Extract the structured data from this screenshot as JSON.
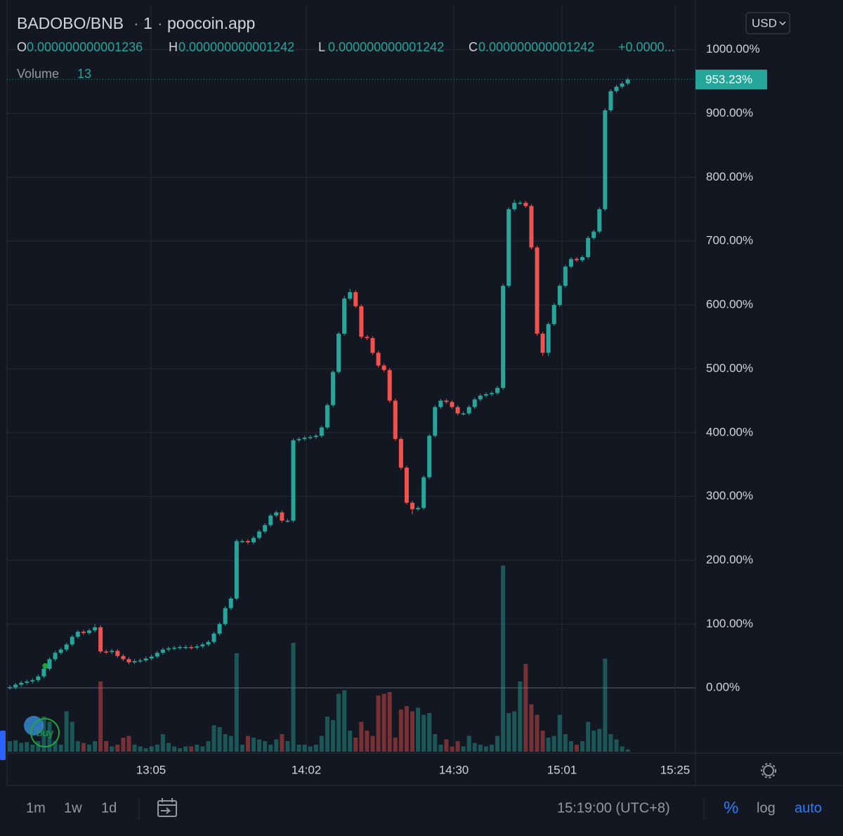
{
  "chart_data": {
    "type": "candlestick",
    "pair": "BADOBO/BNB",
    "interval": "1",
    "source": "poocoin.app",
    "ohlc_labels": [
      "O",
      "H",
      "L",
      "C"
    ],
    "ohlc_values": [
      "0.000000000001236",
      "0.000000000001242",
      "0.000000000001242",
      "0.000000000001242"
    ],
    "change": "+0.0000...",
    "currency": "USD",
    "volume_label": "Volume",
    "last_label": "953.23%",
    "up_color": "#26a69a",
    "down_color": "#ef5350",
    "open": [
      0,
      1,
      5,
      8,
      10,
      12,
      18,
      30,
      45,
      55,
      60,
      68,
      80,
      88,
      86,
      90,
      95,
      57,
      56,
      58,
      50,
      45,
      40,
      42,
      43,
      46,
      49,
      55,
      60,
      62,
      63,
      64,
      64,
      63,
      65,
      68,
      72,
      85,
      100,
      125,
      140,
      230,
      230,
      228,
      235,
      245,
      255,
      270,
      275,
      262,
      262,
      388,
      390,
      392,
      393,
      395,
      408,
      443,
      495,
      555,
      610,
      620,
      598,
      550,
      548,
      525,
      505,
      498,
      450,
      390,
      345,
      290,
      280,
      282,
      330,
      395,
      440,
      450,
      448,
      440,
      430,
      430,
      440,
      452,
      458,
      460,
      462,
      470,
      630,
      750,
      760,
      760,
      755,
      690,
      555,
      525,
      570,
      600,
      630,
      660,
      672,
      670,
      675,
      705,
      715,
      750,
      905,
      935,
      942,
      947
    ],
    "high": [
      4,
      8,
      11,
      13,
      15,
      21,
      33,
      48,
      58,
      63,
      71,
      83,
      91,
      91,
      93,
      100,
      98,
      60,
      61,
      61,
      53,
      48,
      45,
      46,
      49,
      52,
      58,
      63,
      65,
      66,
      67,
      67,
      67,
      68,
      71,
      75,
      88,
      103,
      128,
      143,
      233,
      233,
      233,
      238,
      248,
      258,
      273,
      278,
      278,
      265,
      391,
      393,
      395,
      396,
      398,
      411,
      446,
      498,
      558,
      614,
      625,
      623,
      601,
      553,
      551,
      528,
      508,
      501,
      453,
      393,
      348,
      293,
      285,
      333,
      398,
      443,
      453,
      453,
      451,
      443,
      433,
      443,
      455,
      461,
      463,
      465,
      473,
      633,
      753,
      765,
      763,
      763,
      758,
      693,
      558,
      573,
      603,
      633,
      663,
      675,
      675,
      678,
      708,
      718,
      753,
      908,
      938,
      945,
      950,
      956
    ],
    "low": [
      -3,
      -2,
      2,
      5,
      7,
      9,
      15,
      27,
      42,
      52,
      57,
      65,
      77,
      83,
      83,
      87,
      54,
      53,
      53,
      47,
      42,
      37,
      37,
      39,
      40,
      43,
      46,
      52,
      57,
      59,
      60,
      61,
      60,
      60,
      62,
      65,
      69,
      82,
      97,
      122,
      137,
      227,
      225,
      225,
      232,
      242,
      252,
      267,
      259,
      259,
      259,
      385,
      387,
      389,
      390,
      392,
      405,
      440,
      492,
      552,
      607,
      595,
      547,
      545,
      522,
      502,
      495,
      447,
      387,
      342,
      287,
      272,
      277,
      279,
      327,
      392,
      437,
      445,
      437,
      427,
      427,
      427,
      437,
      449,
      455,
      457,
      459,
      467,
      627,
      747,
      757,
      752,
      687,
      552,
      520,
      520,
      567,
      597,
      627,
      657,
      667,
      667,
      672,
      702,
      712,
      747,
      902,
      932,
      939,
      944
    ],
    "close": [
      1,
      5,
      8,
      10,
      12,
      18,
      30,
      45,
      55,
      60,
      68,
      80,
      88,
      86,
      90,
      95,
      57,
      56,
      58,
      50,
      45,
      40,
      42,
      43,
      46,
      49,
      55,
      60,
      62,
      63,
      64,
      64,
      63,
      65,
      68,
      72,
      85,
      100,
      125,
      140,
      230,
      230,
      228,
      235,
      245,
      255,
      270,
      275,
      262,
      262,
      388,
      390,
      392,
      393,
      395,
      408,
      443,
      495,
      555,
      610,
      620,
      598,
      550,
      548,
      525,
      505,
      498,
      450,
      390,
      345,
      290,
      280,
      282,
      330,
      395,
      440,
      450,
      448,
      440,
      430,
      430,
      440,
      452,
      458,
      460,
      462,
      470,
      630,
      750,
      760,
      760,
      755,
      690,
      555,
      525,
      570,
      600,
      630,
      660,
      672,
      670,
      675,
      705,
      715,
      750,
      905,
      935,
      942,
      947,
      953.23
    ],
    "volume": [
      60,
      65,
      50,
      55,
      40,
      60,
      200,
      170,
      60,
      40,
      230,
      170,
      60,
      50,
      40,
      60,
      400,
      60,
      30,
      40,
      80,
      90,
      40,
      30,
      20,
      30,
      40,
      100,
      50,
      30,
      20,
      30,
      30,
      40,
      30,
      60,
      150,
      140,
      100,
      90,
      560,
      40,
      90,
      80,
      70,
      60,
      40,
      70,
      100,
      60,
      620,
      40,
      40,
      30,
      40,
      90,
      200,
      180,
      330,
      350,
      120,
      80,
      170,
      120,
      90,
      320,
      330,
      340,
      80,
      240,
      260,
      230,
      250,
      210,
      220,
      100,
      40,
      70,
      30,
      60,
      30,
      90,
      50,
      40,
      30,
      40,
      90,
      1060,
      220,
      230,
      400,
      500,
      270,
      210,
      120,
      80,
      90,
      210,
      100,
      60,
      40,
      60,
      170,
      120,
      130,
      530,
      100,
      70,
      30,
      13
    ],
    "ylim": [
      -100,
      1069
    ],
    "yticks": [
      {
        "value": 0,
        "label": "0.00%"
      },
      {
        "value": 100,
        "label": "100.00%"
      },
      {
        "value": 200,
        "label": "200.00%"
      },
      {
        "value": 300,
        "label": "300.00%"
      },
      {
        "value": 400,
        "label": "400.00%"
      },
      {
        "value": 500,
        "label": "500.00%"
      },
      {
        "value": 600,
        "label": "600.00%"
      },
      {
        "value": 700,
        "label": "700.00%"
      },
      {
        "value": 800,
        "label": "800.00%"
      },
      {
        "value": 900,
        "label": "900.00%"
      },
      {
        "value": 1000,
        "label": "1000.00%"
      }
    ],
    "time_labels": [
      "13:05",
      "14:02",
      "14:30",
      "15:01",
      "15:25"
    ],
    "grid": true,
    "log_scale": false
  },
  "toolbar": {
    "ranges": [
      "1m",
      "1w",
      "1d"
    ],
    "clock": "15:19:00 (UTC+8)",
    "percent": "%",
    "log": "log",
    "auto": "auto"
  }
}
